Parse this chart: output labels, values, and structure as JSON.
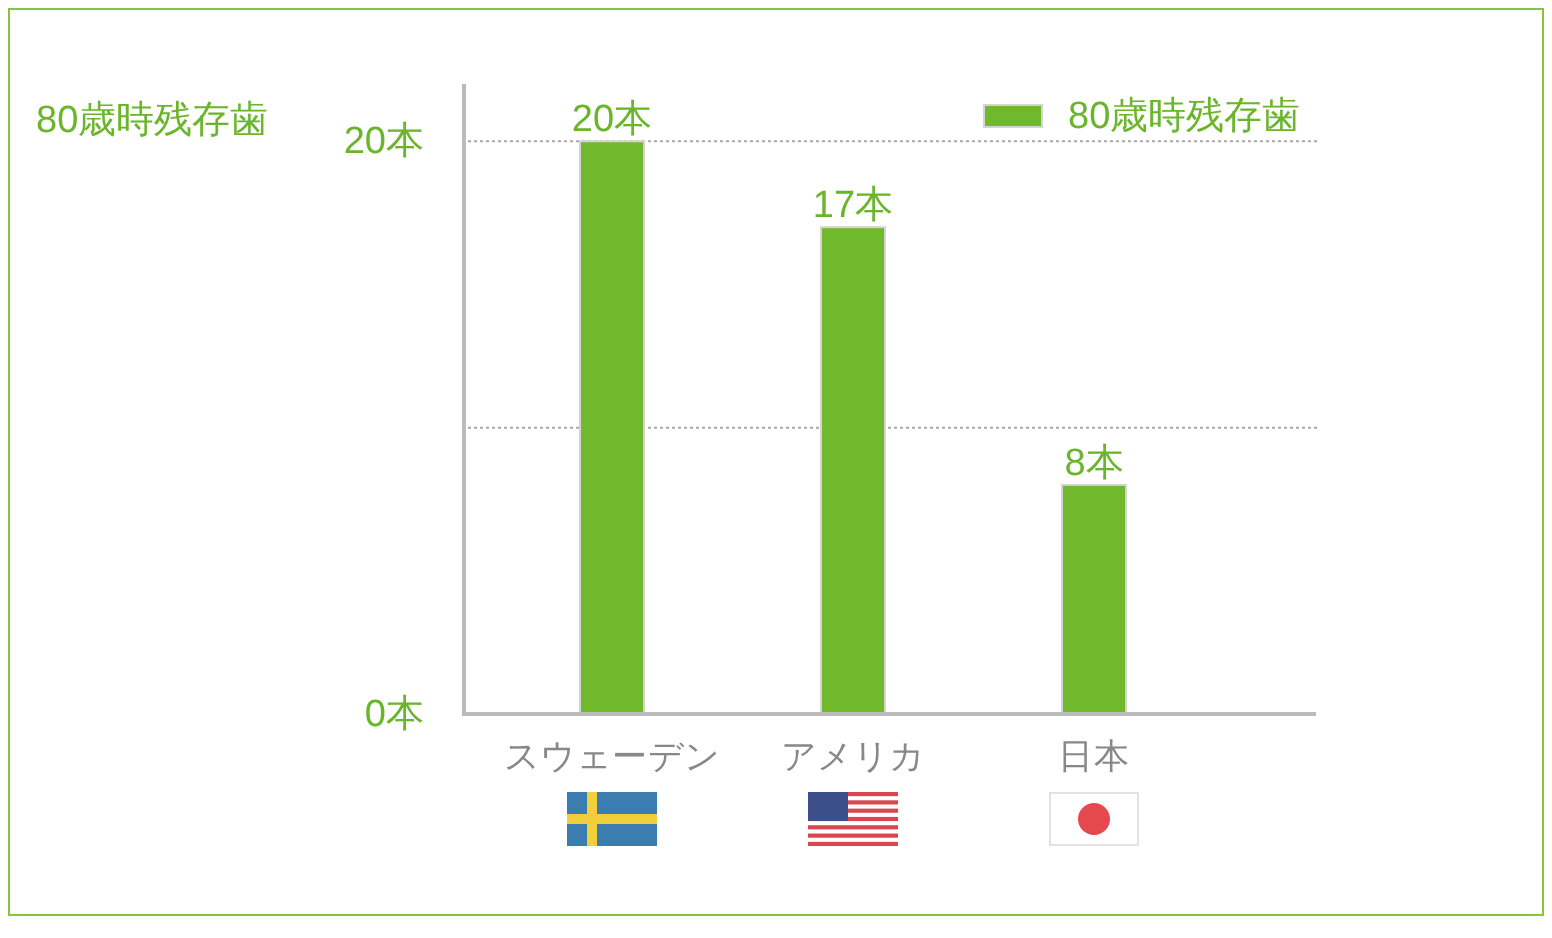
{
  "chart_data": {
    "type": "bar",
    "ylabel": "80歳時残存歯",
    "categories": [
      "スウェーデン",
      "アメリカ",
      "日本"
    ],
    "series": [
      {
        "name": "80歳時残存歯",
        "color": "#70b92d",
        "values": [
          20,
          17,
          8
        ],
        "value_labels": [
          "20本",
          "17本",
          "8本"
        ]
      }
    ],
    "ylim": [
      0,
      22
    ],
    "yticks": [
      {
        "value": 0,
        "label": "0本"
      },
      {
        "value": 10,
        "label": null
      },
      {
        "value": 20,
        "label": "20本"
      }
    ],
    "grid": "y",
    "legend": "top right"
  }
}
